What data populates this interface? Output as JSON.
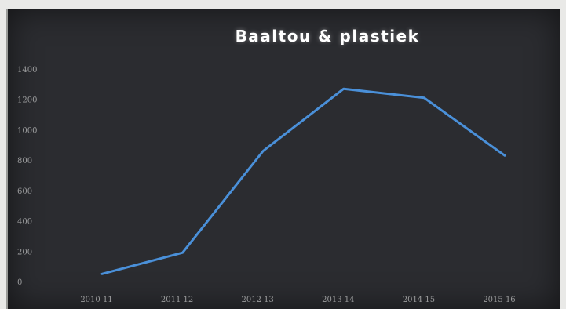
{
  "chart_data": {
    "type": "line",
    "title": "Baaltou & plastiek",
    "xlabel": "",
    "ylabel": "",
    "categories": [
      "2010 11",
      "2011 12",
      "2012 13",
      "2013 14",
      "2014 15",
      "2015 16"
    ],
    "series": [
      {
        "values": [
          50,
          190,
          860,
          1270,
          1210,
          830
        ]
      }
    ],
    "ylim": [
      0,
      1400
    ],
    "yticks": [
      0,
      200,
      400,
      600,
      800,
      1000,
      1200,
      1400
    ],
    "ytick_labels": [
      "0",
      "200",
      "400",
      "600",
      "800",
      "1000",
      "1200",
      "1400"
    ],
    "grid": false,
    "legend": "none",
    "colors": {
      "background": "#2b2c30",
      "line": "#4a90d9",
      "title": "#ffffff",
      "ticks": "#9a9b9c"
    }
  }
}
